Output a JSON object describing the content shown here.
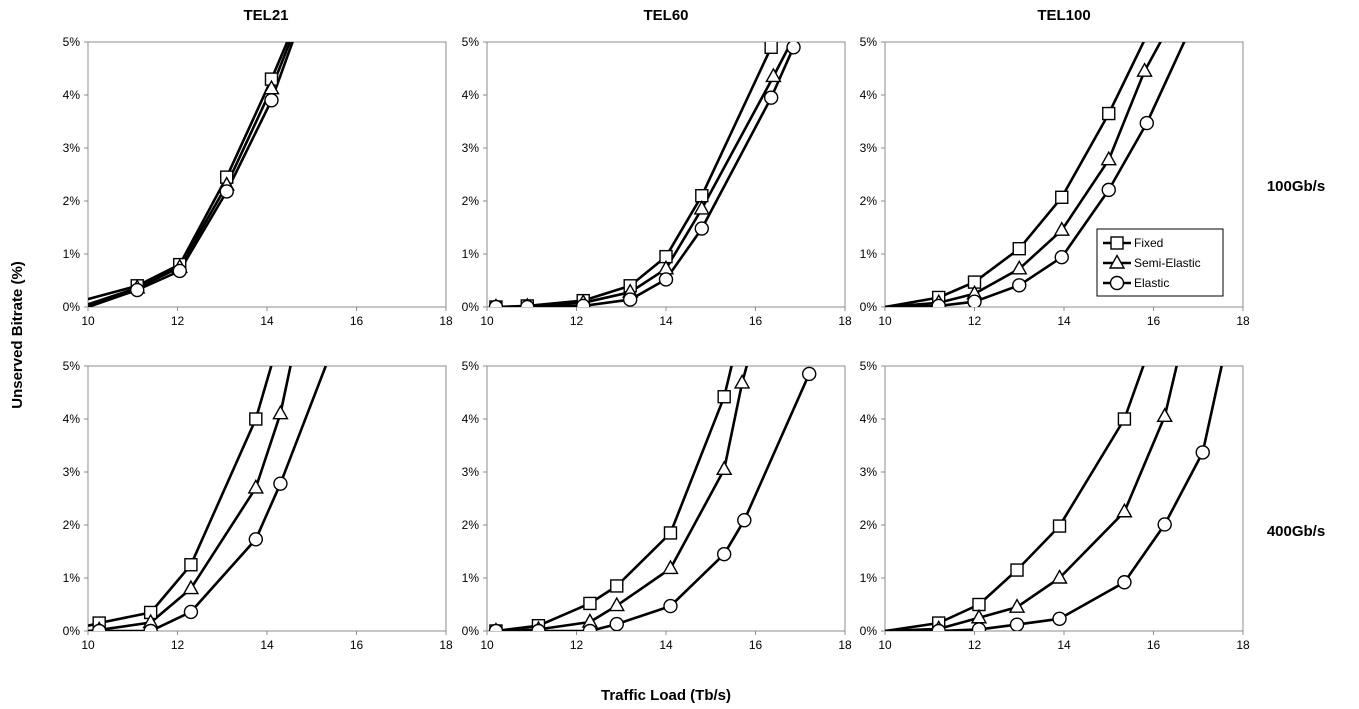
{
  "figure": {
    "ylabel": "Unserved Bitrate (%)",
    "xlabel": "Traffic Load (Tb/s)",
    "column_titles": [
      "TEL21",
      "TEL60",
      "TEL100"
    ],
    "row_labels": [
      "100Gb/s",
      "400Gb/s"
    ],
    "legend": [
      "Fixed",
      "Semi-Elastic",
      "Elastic"
    ]
  },
  "style": {
    "line_color": "#000000",
    "frame_color": "#8c8c8c",
    "marker_fill": "#ffffff"
  },
  "chart_data": [
    {
      "type": "line",
      "network": "TEL21",
      "rate": "100Gb/s",
      "xlim": [
        10,
        18
      ],
      "ylim": [
        0,
        5
      ],
      "xticks": [
        10,
        12,
        14,
        16,
        18
      ],
      "yticks": [
        "0%",
        "1%",
        "2%",
        "3%",
        "4%",
        "5%"
      ],
      "series": [
        {
          "name": "Fixed",
          "marker": "square",
          "x": [
            10,
            11.1,
            12.05,
            13.1,
            14.1,
            14.6
          ],
          "y": [
            0.15,
            0.4,
            0.8,
            2.45,
            4.3,
            5.3
          ],
          "markers": [
            false,
            true,
            true,
            true,
            true,
            false
          ]
        },
        {
          "name": "Semi-Elastic",
          "marker": "triangle",
          "x": [
            10,
            11.1,
            12.05,
            13.1,
            14.1,
            14.65
          ],
          "y": [
            0.05,
            0.36,
            0.75,
            2.3,
            4.12,
            5.3
          ],
          "markers": [
            false,
            true,
            true,
            true,
            true,
            false
          ]
        },
        {
          "name": "Elastic",
          "marker": "circle",
          "x": [
            10,
            11.1,
            12.05,
            13.1,
            14.1,
            14.7
          ],
          "y": [
            0.0,
            0.32,
            0.68,
            2.18,
            3.9,
            5.3
          ],
          "markers": [
            false,
            true,
            true,
            true,
            true,
            false
          ]
        }
      ]
    },
    {
      "type": "line",
      "network": "TEL60",
      "rate": "100Gb/s",
      "xlim": [
        10,
        18
      ],
      "ylim": [
        0,
        5
      ],
      "xticks": [
        10,
        12,
        14,
        16,
        18
      ],
      "yticks": [
        "0%",
        "1%",
        "2%",
        "3%",
        "4%",
        "5%"
      ],
      "series": [
        {
          "name": "Fixed",
          "marker": "square",
          "x": [
            10.2,
            10.9,
            12.15,
            13.2,
            14.0,
            14.8,
            16.35
          ],
          "y": [
            0.0,
            0.02,
            0.12,
            0.4,
            0.95,
            2.1,
            4.9
          ],
          "markers": [
            true,
            true,
            true,
            true,
            true,
            true,
            true
          ]
        },
        {
          "name": "Semi-Elastic",
          "marker": "triangle",
          "x": [
            10.2,
            10.9,
            12.15,
            13.2,
            14.0,
            14.8,
            16.4,
            16.8
          ],
          "y": [
            0.0,
            0.01,
            0.08,
            0.28,
            0.72,
            1.85,
            4.35,
            5.0
          ],
          "markers": [
            true,
            true,
            true,
            true,
            true,
            true,
            true,
            false
          ]
        },
        {
          "name": "Elastic",
          "marker": "circle",
          "x": [
            10.2,
            10.9,
            12.15,
            13.2,
            14.0,
            14.8,
            16.35,
            16.85
          ],
          "y": [
            0.0,
            0.0,
            0.02,
            0.14,
            0.52,
            1.48,
            3.95,
            4.9
          ],
          "markers": [
            true,
            true,
            true,
            true,
            true,
            true,
            true,
            true
          ]
        }
      ]
    },
    {
      "type": "line",
      "network": "TEL100",
      "rate": "100Gb/s",
      "xlim": [
        10,
        18
      ],
      "ylim": [
        0,
        5
      ],
      "xticks": [
        10,
        12,
        14,
        16,
        18
      ],
      "yticks": [
        "0%",
        "1%",
        "2%",
        "3%",
        "4%",
        "5%"
      ],
      "series": [
        {
          "name": "Fixed",
          "marker": "square",
          "x": [
            10,
            11.2,
            12.0,
            13.0,
            13.95,
            15.0,
            15.95
          ],
          "y": [
            0.0,
            0.18,
            0.47,
            1.1,
            2.07,
            3.65,
            5.3
          ],
          "markers": [
            false,
            true,
            true,
            true,
            true,
            true,
            false
          ]
        },
        {
          "name": "Semi-Elastic",
          "marker": "triangle",
          "x": [
            10,
            11.2,
            12.0,
            13.0,
            13.95,
            15.0,
            15.8,
            16.35
          ],
          "y": [
            0.0,
            0.08,
            0.25,
            0.72,
            1.45,
            2.78,
            4.45,
            5.3
          ],
          "markers": [
            false,
            true,
            true,
            true,
            true,
            true,
            true,
            false
          ]
        },
        {
          "name": "Elastic",
          "marker": "circle",
          "x": [
            10,
            11.2,
            12.0,
            13.0,
            13.95,
            15.0,
            15.85,
            16.85
          ],
          "y": [
            0.0,
            0.02,
            0.1,
            0.41,
            0.94,
            2.21,
            3.47,
            5.3
          ],
          "markers": [
            false,
            true,
            true,
            true,
            true,
            true,
            true,
            false
          ]
        }
      ]
    },
    {
      "type": "line",
      "network": "TEL21",
      "rate": "400Gb/s",
      "xlim": [
        10,
        18
      ],
      "ylim": [
        0,
        5
      ],
      "xticks": [
        10,
        12,
        14,
        16,
        18
      ],
      "yticks": [
        "0%",
        "1%",
        "2%",
        "3%",
        "4%",
        "5%"
      ],
      "series": [
        {
          "name": "Fixed",
          "marker": "square",
          "x": [
            10,
            10.25,
            11.4,
            12.3,
            13.75,
            14.2
          ],
          "y": [
            0.1,
            0.15,
            0.35,
            1.25,
            4.0,
            5.3
          ],
          "markers": [
            false,
            true,
            true,
            true,
            true,
            false
          ]
        },
        {
          "name": "Semi-Elastic",
          "marker": "triangle",
          "x": [
            10,
            10.25,
            11.4,
            12.3,
            13.75,
            14.3,
            14.6
          ],
          "y": [
            0.0,
            0.02,
            0.16,
            0.8,
            2.7,
            4.1,
            5.3
          ],
          "markers": [
            false,
            true,
            true,
            true,
            true,
            true,
            false
          ]
        },
        {
          "name": "Elastic",
          "marker": "circle",
          "x": [
            10,
            10.25,
            11.4,
            12.3,
            13.75,
            14.3,
            15.45
          ],
          "y": [
            0.0,
            0.0,
            0.0,
            0.36,
            1.73,
            2.78,
            5.3
          ],
          "markers": [
            false,
            true,
            true,
            true,
            true,
            true,
            false
          ]
        }
      ]
    },
    {
      "type": "line",
      "network": "TEL60",
      "rate": "400Gb/s",
      "xlim": [
        10,
        18
      ],
      "ylim": [
        0,
        5
      ],
      "xticks": [
        10,
        12,
        14,
        16,
        18
      ],
      "yticks": [
        "0%",
        "1%",
        "2%",
        "3%",
        "4%",
        "5%"
      ],
      "series": [
        {
          "name": "Fixed",
          "marker": "square",
          "x": [
            10.2,
            11.15,
            12.3,
            12.9,
            14.1,
            15.3,
            15.55
          ],
          "y": [
            0.0,
            0.1,
            0.52,
            0.85,
            1.85,
            4.42,
            5.3
          ],
          "markers": [
            true,
            true,
            true,
            true,
            true,
            true,
            false
          ]
        },
        {
          "name": "Semi-Elastic",
          "marker": "triangle",
          "x": [
            10.2,
            11.15,
            12.3,
            12.9,
            14.1,
            15.3,
            15.7,
            15.9
          ],
          "y": [
            0.0,
            0.03,
            0.17,
            0.48,
            1.18,
            3.05,
            4.68,
            5.3
          ],
          "markers": [
            true,
            true,
            true,
            true,
            true,
            true,
            true,
            false
          ]
        },
        {
          "name": "Elastic",
          "marker": "circle",
          "x": [
            10.2,
            11.15,
            12.3,
            12.9,
            14.1,
            15.3,
            15.75,
            17.2
          ],
          "y": [
            0.0,
            0.0,
            0.0,
            0.13,
            0.47,
            1.45,
            2.09,
            4.85
          ],
          "markers": [
            true,
            true,
            true,
            true,
            true,
            true,
            true,
            true
          ]
        }
      ]
    },
    {
      "type": "line",
      "network": "TEL100",
      "rate": "400Gb/s",
      "xlim": [
        10,
        18
      ],
      "ylim": [
        0,
        5
      ],
      "xticks": [
        10,
        12,
        14,
        16,
        18
      ],
      "yticks": [
        "0%",
        "1%",
        "2%",
        "3%",
        "4%",
        "5%"
      ],
      "series": [
        {
          "name": "Fixed",
          "marker": "square",
          "x": [
            10,
            11.2,
            12.1,
            12.95,
            13.9,
            15.35,
            15.9
          ],
          "y": [
            0.0,
            0.15,
            0.5,
            1.15,
            1.98,
            4.0,
            5.3
          ],
          "markers": [
            false,
            true,
            true,
            true,
            true,
            true,
            false
          ]
        },
        {
          "name": "Semi-Elastic",
          "marker": "triangle",
          "x": [
            10,
            11.2,
            12.1,
            12.95,
            13.9,
            15.35,
            16.25,
            16.6
          ],
          "y": [
            0.0,
            0.04,
            0.25,
            0.45,
            1.0,
            2.25,
            4.05,
            5.3
          ],
          "markers": [
            false,
            true,
            true,
            true,
            true,
            true,
            true,
            false
          ]
        },
        {
          "name": "Elastic",
          "marker": "circle",
          "x": [
            10,
            11.2,
            12.1,
            12.95,
            13.9,
            15.35,
            16.25,
            17.1,
            17.6
          ],
          "y": [
            0.0,
            0.0,
            0.03,
            0.12,
            0.23,
            0.92,
            2.01,
            3.37,
            5.3
          ],
          "markers": [
            false,
            true,
            true,
            true,
            true,
            true,
            true,
            true,
            false
          ]
        }
      ]
    }
  ]
}
